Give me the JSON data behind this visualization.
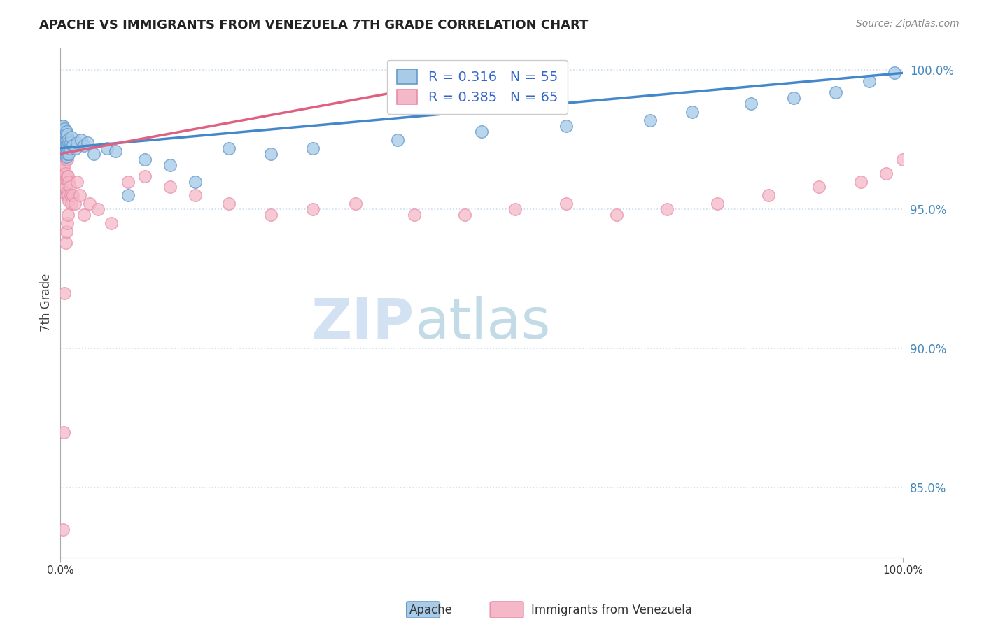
{
  "title": "APACHE VS IMMIGRANTS FROM VENEZUELA 7TH GRADE CORRELATION CHART",
  "source": "Source: ZipAtlas.com",
  "ylabel": "7th Grade",
  "xmin": 0.0,
  "xmax": 1.0,
  "ymin": 0.825,
  "ymax": 1.008,
  "yticks": [
    0.85,
    0.9,
    0.95,
    1.0
  ],
  "ytick_labels": [
    "85.0%",
    "90.0%",
    "95.0%",
    "100.0%"
  ],
  "xticks": [
    0.0,
    1.0
  ],
  "xtick_labels": [
    "0.0%",
    "100.0%"
  ],
  "apache_color_face": "#a8cce8",
  "apache_color_edge": "#6699cc",
  "venezuela_color_face": "#f4b8c8",
  "venezuela_color_edge": "#e88ca8",
  "trend_apache_color": "#4488cc",
  "trend_venezuela_color": "#e06080",
  "legend_R_apache": "0.316",
  "legend_N_apache": "55",
  "legend_R_venezuela": "0.385",
  "legend_N_venezuela": "65",
  "legend_value_color": "#3366cc",
  "tick_label_color": "#4488bb",
  "grid_color": "#ccddee",
  "watermark_zip_color": "#ccddf0",
  "watermark_atlas_color": "#aaccdd",
  "apache_x": [
    0.001,
    0.002,
    0.002,
    0.003,
    0.003,
    0.003,
    0.004,
    0.004,
    0.004,
    0.005,
    0.005,
    0.005,
    0.006,
    0.006,
    0.006,
    0.007,
    0.007,
    0.007,
    0.007,
    0.008,
    0.008,
    0.008,
    0.009,
    0.009,
    0.01,
    0.01,
    0.011,
    0.012,
    0.013,
    0.015,
    0.018,
    0.02,
    0.025,
    0.028,
    0.032,
    0.04,
    0.055,
    0.065,
    0.08,
    0.1,
    0.13,
    0.16,
    0.2,
    0.25,
    0.3,
    0.4,
    0.5,
    0.6,
    0.7,
    0.75,
    0.82,
    0.87,
    0.92,
    0.96,
    0.99
  ],
  "apache_y": [
    0.978,
    0.975,
    0.98,
    0.972,
    0.976,
    0.98,
    0.97,
    0.974,
    0.978,
    0.971,
    0.975,
    0.979,
    0.97,
    0.973,
    0.977,
    0.969,
    0.972,
    0.975,
    0.978,
    0.97,
    0.973,
    0.977,
    0.971,
    0.975,
    0.97,
    0.974,
    0.972,
    0.974,
    0.976,
    0.973,
    0.972,
    0.974,
    0.975,
    0.973,
    0.974,
    0.97,
    0.972,
    0.971,
    0.955,
    0.968,
    0.966,
    0.96,
    0.972,
    0.97,
    0.972,
    0.975,
    0.978,
    0.98,
    0.982,
    0.985,
    0.988,
    0.99,
    0.992,
    0.996,
    0.999
  ],
  "venezuela_x": [
    0.001,
    0.001,
    0.002,
    0.002,
    0.002,
    0.003,
    0.003,
    0.003,
    0.004,
    0.004,
    0.004,
    0.005,
    0.005,
    0.005,
    0.006,
    0.006,
    0.006,
    0.007,
    0.007,
    0.007,
    0.008,
    0.008,
    0.008,
    0.009,
    0.009,
    0.01,
    0.01,
    0.011,
    0.012,
    0.013,
    0.015,
    0.017,
    0.02,
    0.023,
    0.028,
    0.035,
    0.045,
    0.06,
    0.08,
    0.1,
    0.13,
    0.16,
    0.2,
    0.25,
    0.3,
    0.35,
    0.42,
    0.48,
    0.54,
    0.6,
    0.66,
    0.72,
    0.78,
    0.84,
    0.9,
    0.95,
    0.98,
    1.0,
    0.003,
    0.004,
    0.005,
    0.006,
    0.007,
    0.008,
    0.009
  ],
  "venezuela_y": [
    0.97,
    0.975,
    0.968,
    0.972,
    0.978,
    0.965,
    0.97,
    0.975,
    0.963,
    0.968,
    0.973,
    0.96,
    0.966,
    0.972,
    0.958,
    0.963,
    0.97,
    0.955,
    0.961,
    0.968,
    0.956,
    0.962,
    0.968,
    0.955,
    0.962,
    0.953,
    0.96,
    0.958,
    0.955,
    0.952,
    0.955,
    0.952,
    0.96,
    0.955,
    0.948,
    0.952,
    0.95,
    0.945,
    0.96,
    0.962,
    0.958,
    0.955,
    0.952,
    0.948,
    0.95,
    0.952,
    0.948,
    0.948,
    0.95,
    0.952,
    0.948,
    0.95,
    0.952,
    0.955,
    0.958,
    0.96,
    0.963,
    0.968,
    0.835,
    0.87,
    0.92,
    0.938,
    0.942,
    0.945,
    0.948
  ],
  "apache_trend_x0": 0.0,
  "apache_trend_x1": 1.0,
  "apache_trend_y0": 0.972,
  "apache_trend_y1": 0.999,
  "venezuela_trend_x0": 0.0,
  "venezuela_trend_x1": 0.45,
  "venezuela_trend_y0": 0.97,
  "venezuela_trend_y1": 0.995
}
